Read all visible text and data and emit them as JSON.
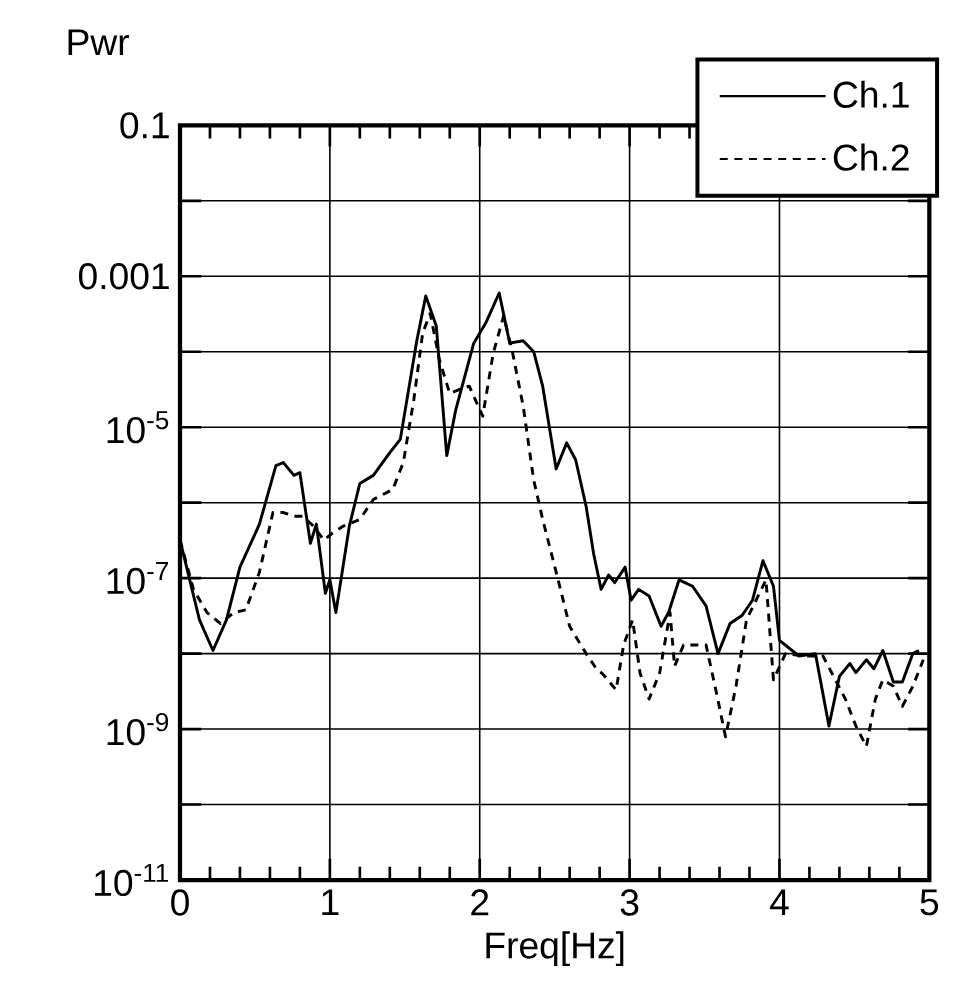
{
  "chart_data": {
    "type": "line",
    "xlabel": "Freq[Hz]",
    "ylabel": "Pwr",
    "xlim": [
      0,
      5
    ],
    "xticks": [
      0,
      1,
      2,
      3,
      4,
      5
    ],
    "ylim": [
      1e-11,
      0.1
    ],
    "yticks": [
      0.1,
      {
        "value": 0.01,
        "label": null
      },
      0.001,
      {
        "value": 0.0001,
        "label": null
      },
      {
        "value": 1e-05,
        "label": "10$^{-5}$"
      },
      {
        "value": 1e-06,
        "label": null
      },
      {
        "value": 1e-07,
        "label": "10$^{-7}$"
      },
      {
        "value": 1e-08,
        "label": null
      },
      {
        "value": 1e-09,
        "label": "10$^{-9}$"
      },
      {
        "value": 1e-10,
        "label": null
      },
      {
        "value": 1e-11,
        "label": "10$^{-11}$"
      }
    ],
    "log": "y",
    "grid": true,
    "legend": "top right",
    "series": [
      {
        "name": "Ch.1",
        "color": "#000000",
        "line_style": "solid",
        "x": [
          0,
          0.13,
          0.22,
          0.31,
          0.4,
          0.53,
          0.64,
          0.69,
          0.76,
          0.8,
          0.87,
          0.91,
          0.97,
          1.0,
          1.04,
          1.13,
          1.2,
          1.29,
          1.4,
          1.47,
          1.58,
          1.64,
          1.71,
          1.78,
          1.84,
          1.96,
          2.04,
          2.13,
          2.2,
          2.29,
          2.36,
          2.42,
          2.51,
          2.58,
          2.64,
          2.71,
          2.76,
          2.81,
          2.86,
          2.9,
          2.97,
          3.01,
          3.06,
          3.13,
          3.21,
          3.26,
          3.33,
          3.42,
          3.51,
          3.59,
          3.67,
          3.75,
          3.82,
          3.89,
          3.96,
          4.0,
          4.13,
          4.24,
          4.33,
          4.4,
          4.47,
          4.51,
          4.58,
          4.63,
          4.69,
          4.76,
          4.82,
          4.89,
          4.93
        ],
        "values": [
          3.2e-07,
          2.8e-08,
          1.1e-08,
          2.8e-08,
          1.4e-07,
          5.2e-07,
          3.1e-06,
          3.4e-06,
          2.3e-06,
          2.5e-06,
          2.9e-07,
          5.2e-07,
          6.3e-08,
          9.5e-08,
          3.5e-08,
          4.9e-07,
          1.8e-06,
          2.3e-06,
          4.6e-06,
          6.9e-06,
          0.00014,
          0.00055,
          0.00022,
          4.2e-06,
          1.7e-05,
          0.00013,
          0.00024,
          0.0006,
          0.00013,
          0.00014,
          0.0001,
          3.5e-05,
          2.8e-06,
          6.2e-06,
          3.7e-06,
          8.9e-07,
          2.1e-07,
          7.1e-08,
          1.1e-07,
          8.7e-08,
          1.4e-07,
          5.1e-08,
          7.1e-08,
          5.8e-08,
          2.3e-08,
          3.5e-08,
          9.5e-08,
          7.8e-08,
          4.3e-08,
          1e-08,
          2.5e-08,
          3.2e-08,
          5.1e-08,
          1.7e-07,
          7.8e-08,
          1.5e-08,
          9.3e-09,
          1e-08,
          1.1e-09,
          5e-09,
          7.4e-09,
          5.6e-09,
          8.3e-09,
          6.3e-09,
          1.1e-08,
          4.2e-09,
          4.2e-09,
          1e-08,
          1.1e-08
        ]
      },
      {
        "name": "Ch.2",
        "color": "#000000",
        "line_style": "dashed",
        "x": [
          0,
          0.09,
          0.18,
          0.27,
          0.36,
          0.44,
          0.53,
          0.62,
          0.69,
          0.76,
          0.82,
          0.89,
          0.96,
          1.02,
          1.09,
          1.2,
          1.29,
          1.42,
          1.49,
          1.56,
          1.62,
          1.67,
          1.73,
          1.8,
          1.87,
          1.93,
          2.02,
          2.09,
          2.16,
          2.22,
          2.29,
          2.36,
          2.42,
          2.51,
          2.6,
          2.71,
          2.78,
          2.82,
          2.91,
          2.96,
          3.02,
          3.07,
          3.13,
          3.2,
          3.27,
          3.3,
          3.36,
          3.51,
          3.58,
          3.64,
          3.71,
          3.78,
          3.91,
          3.96,
          4.04,
          4.16,
          4.29,
          4.44,
          4.51,
          4.58,
          4.64,
          4.69,
          4.76,
          4.82,
          4.89,
          4.96
        ],
        "values": [
          3.2e-07,
          7.1e-08,
          3.5e-08,
          2.5e-08,
          3.5e-08,
          3.8e-08,
          1.2e-07,
          7.4e-07,
          7.4e-07,
          6.6e-07,
          6.6e-07,
          4.9e-07,
          3.2e-07,
          4e-07,
          4.9e-07,
          6e-07,
          1.1e-06,
          1.5e-06,
          3.4e-06,
          2.3e-05,
          0.00018,
          0.00032,
          7.9e-05,
          2.8e-05,
          3.2e-05,
          3.5e-05,
          1.4e-05,
          9.5e-05,
          0.0003,
          9.5e-05,
          1.9e-05,
          2e-06,
          6e-07,
          1.2e-07,
          2.3e-08,
          1e-08,
          6.2e-09,
          5.4e-09,
          3.3e-09,
          1.3e-08,
          2.8e-08,
          5.5e-09,
          2.5e-09,
          5.5e-09,
          3.5e-08,
          6.8e-09,
          1.3e-08,
          1.3e-08,
          3e-09,
          7.9e-10,
          3.7e-09,
          2.8e-08,
          9.5e-08,
          4.5e-09,
          1e-08,
          9.3e-09,
          9.3e-09,
          2.5e-09,
          1.1e-09,
          5.9e-10,
          2.5e-09,
          4.5e-09,
          3.7e-09,
          2e-09,
          3.7e-09,
          8.3e-09
        ]
      }
    ]
  }
}
